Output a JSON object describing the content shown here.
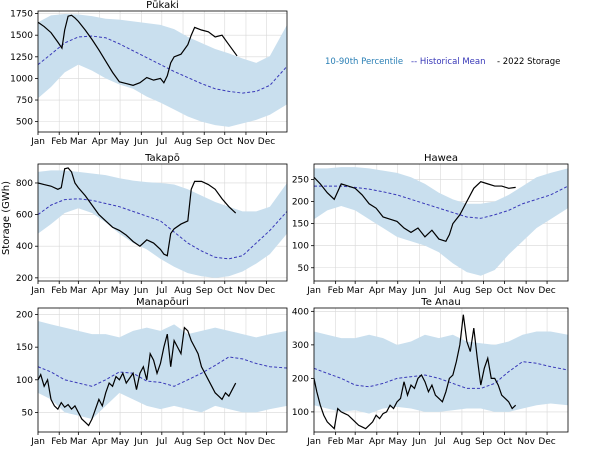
{
  "colors": {
    "band": "#c9dfee",
    "mean": "#3838b8",
    "storage": "#000000",
    "grid": "#d8d8d8",
    "legend_band": "#2a7fb5",
    "legend_mean": "#3838b8",
    "legend_storage": "#000000"
  },
  "legend": {
    "band_label": "10-90th Percentile",
    "mean_label": "-- Historical Mean",
    "storage_label": "- 2022 Storage",
    "placement": "top-right"
  },
  "months": [
    "Jan",
    "Feb",
    "Mar",
    "Apr",
    "May",
    "Jun",
    "Jul",
    "Aug",
    "Sep",
    "Oct",
    "Nov",
    "Dec"
  ],
  "ylabel": "Storage (GWh)",
  "chart_data": [
    {
      "type": "line",
      "title": "Pūkaki",
      "ylim": [
        380,
        1780
      ],
      "yticks": [
        500,
        750,
        1000,
        1250,
        1500,
        1750
      ],
      "grid": true,
      "band": {
        "x": [
          1,
          20,
          40,
          60,
          80,
          100,
          120,
          140,
          160,
          180,
          200,
          220,
          240,
          260,
          280,
          300,
          320,
          340,
          365
        ],
        "low": [
          770,
          900,
          1070,
          1160,
          1090,
          1000,
          930,
          880,
          790,
          720,
          640,
          560,
          500,
          460,
          440,
          480,
          520,
          580,
          700
        ],
        "high": [
          1650,
          1730,
          1745,
          1740,
          1720,
          1690,
          1680,
          1660,
          1640,
          1620,
          1570,
          1480,
          1410,
          1340,
          1290,
          1230,
          1180,
          1260,
          1620
        ]
      },
      "series": [
        {
          "role": "mean",
          "x": [
            1,
            20,
            40,
            60,
            80,
            100,
            120,
            140,
            160,
            180,
            200,
            220,
            240,
            260,
            280,
            300,
            320,
            340,
            365
          ],
          "values": [
            1160,
            1280,
            1410,
            1480,
            1490,
            1470,
            1400,
            1320,
            1240,
            1160,
            1080,
            1010,
            940,
            880,
            850,
            830,
            850,
            920,
            1140
          ]
        },
        {
          "role": "storage",
          "x": [
            1,
            10,
            20,
            30,
            36,
            40,
            45,
            50,
            55,
            60,
            70,
            80,
            90,
            100,
            110,
            120,
            130,
            140,
            150,
            160,
            170,
            180,
            185,
            190,
            195,
            200,
            210,
            220,
            225,
            230,
            240,
            250,
            260,
            270,
            280,
            292
          ],
          "values": [
            1650,
            1600,
            1530,
            1420,
            1350,
            1560,
            1720,
            1730,
            1700,
            1660,
            1560,
            1450,
            1330,
            1200,
            1070,
            960,
            940,
            920,
            950,
            1010,
            980,
            1000,
            950,
            1030,
            1180,
            1250,
            1280,
            1390,
            1500,
            1590,
            1560,
            1540,
            1480,
            1500,
            1390,
            1260
          ]
        }
      ]
    },
    {
      "type": "line",
      "title": "Takapō",
      "ylim": [
        180,
        920
      ],
      "yticks": [
        200,
        400,
        600,
        800
      ],
      "grid": true,
      "band": {
        "x": [
          1,
          20,
          40,
          60,
          80,
          100,
          120,
          140,
          160,
          180,
          200,
          220,
          240,
          260,
          280,
          300,
          320,
          340,
          365
        ],
        "low": [
          480,
          540,
          610,
          640,
          610,
          550,
          480,
          420,
          380,
          320,
          270,
          230,
          210,
          200,
          210,
          240,
          290,
          350,
          480
        ],
        "high": [
          870,
          880,
          880,
          870,
          860,
          850,
          830,
          815,
          805,
          800,
          790,
          760,
          720,
          680,
          650,
          620,
          620,
          650,
          800
        ]
      },
      "series": [
        {
          "role": "mean",
          "x": [
            1,
            20,
            40,
            60,
            80,
            100,
            120,
            140,
            160,
            180,
            200,
            220,
            240,
            260,
            280,
            300,
            320,
            340,
            365
          ],
          "values": [
            600,
            660,
            695,
            700,
            690,
            670,
            650,
            620,
            590,
            560,
            490,
            420,
            370,
            330,
            320,
            340,
            420,
            500,
            620
          ]
        },
        {
          "role": "storage",
          "x": [
            1,
            10,
            20,
            30,
            35,
            40,
            45,
            50,
            55,
            60,
            70,
            80,
            90,
            100,
            110,
            120,
            130,
            140,
            150,
            160,
            170,
            180,
            185,
            190,
            195,
            200,
            210,
            220,
            225,
            230,
            240,
            250,
            260,
            270,
            280,
            290
          ],
          "values": [
            800,
            790,
            780,
            760,
            770,
            890,
            895,
            870,
            800,
            770,
            720,
            660,
            600,
            560,
            520,
            500,
            470,
            430,
            400,
            440,
            420,
            380,
            350,
            340,
            480,
            510,
            540,
            560,
            760,
            810,
            810,
            790,
            760,
            700,
            650,
            610
          ]
        }
      ]
    },
    {
      "type": "line",
      "title": "Hawea",
      "ylim": [
        20,
        285
      ],
      "yticks": [
        50,
        100,
        150,
        200,
        250
      ],
      "grid": true,
      "band": {
        "x": [
          1,
          20,
          40,
          60,
          80,
          100,
          120,
          140,
          160,
          180,
          200,
          220,
          240,
          260,
          280,
          300,
          320,
          340,
          365
        ],
        "low": [
          160,
          180,
          190,
          180,
          160,
          140,
          120,
          110,
          100,
          85,
          60,
          40,
          32,
          45,
          80,
          110,
          140,
          160,
          185
        ],
        "high": [
          275,
          275,
          278,
          278,
          275,
          270,
          265,
          255,
          240,
          220,
          205,
          195,
          195,
          200,
          215,
          235,
          255,
          265,
          275
        ]
      },
      "series": [
        {
          "role": "mean",
          "x": [
            1,
            20,
            40,
            60,
            80,
            100,
            120,
            140,
            160,
            180,
            200,
            220,
            240,
            260,
            280,
            300,
            320,
            340,
            365
          ],
          "values": [
            235,
            235,
            235,
            232,
            228,
            222,
            215,
            205,
            195,
            185,
            175,
            165,
            162,
            170,
            180,
            195,
            205,
            215,
            235
          ]
        },
        {
          "role": "storage",
          "x": [
            1,
            10,
            20,
            30,
            40,
            50,
            60,
            70,
            80,
            90,
            100,
            110,
            120,
            130,
            140,
            150,
            160,
            170,
            180,
            190,
            195,
            200,
            210,
            220,
            230,
            240,
            250,
            260,
            270,
            280,
            290
          ],
          "values": [
            255,
            240,
            220,
            205,
            240,
            235,
            230,
            215,
            195,
            185,
            165,
            160,
            155,
            140,
            130,
            140,
            120,
            135,
            115,
            110,
            125,
            150,
            170,
            200,
            230,
            245,
            240,
            235,
            235,
            230,
            232
          ]
        }
      ]
    },
    {
      "type": "line",
      "title": "Manapōuri",
      "ylim": [
        20,
        210
      ],
      "yticks": [
        50,
        100,
        150,
        200
      ],
      "grid": true,
      "band": {
        "x": [
          1,
          20,
          40,
          60,
          80,
          100,
          120,
          140,
          160,
          180,
          200,
          220,
          240,
          260,
          280,
          300,
          320,
          340,
          365
        ],
        "low": [
          80,
          70,
          50,
          45,
          40,
          60,
          80,
          70,
          60,
          55,
          60,
          55,
          50,
          60,
          55,
          50,
          50,
          55,
          60
        ],
        "high": [
          190,
          185,
          180,
          175,
          170,
          170,
          165,
          175,
          180,
          175,
          185,
          170,
          175,
          180,
          175,
          170,
          165,
          170,
          175
        ]
      },
      "series": [
        {
          "role": "mean",
          "x": [
            1,
            20,
            40,
            60,
            80,
            100,
            120,
            140,
            160,
            180,
            200,
            220,
            240,
            260,
            280,
            300,
            320,
            340,
            365
          ],
          "values": [
            120,
            112,
            100,
            95,
            90,
            100,
            112,
            110,
            98,
            96,
            90,
            100,
            110,
            122,
            135,
            132,
            125,
            120,
            118
          ]
        },
        {
          "role": "storage",
          "x": [
            1,
            5,
            10,
            15,
            20,
            25,
            30,
            35,
            40,
            45,
            50,
            55,
            60,
            65,
            70,
            75,
            80,
            85,
            90,
            95,
            100,
            105,
            110,
            115,
            120,
            125,
            130,
            140,
            145,
            150,
            155,
            160,
            165,
            170,
            175,
            180,
            185,
            190,
            195,
            200,
            205,
            210,
            215,
            220,
            225,
            230,
            235,
            240,
            245,
            250,
            255,
            260,
            265,
            270,
            275,
            280,
            285,
            290
          ],
          "values": [
            100,
            108,
            90,
            100,
            70,
            60,
            55,
            65,
            58,
            62,
            55,
            60,
            50,
            40,
            35,
            30,
            40,
            55,
            70,
            60,
            80,
            95,
            90,
            105,
            100,
            110,
            95,
            110,
            85,
            110,
            120,
            100,
            140,
            130,
            110,
            125,
            150,
            170,
            120,
            160,
            150,
            140,
            180,
            175,
            160,
            150,
            140,
            120,
            110,
            100,
            90,
            80,
            75,
            70,
            80,
            75,
            85,
            95
          ]
        }
      ]
    },
    {
      "type": "line",
      "title": "Te Anau",
      "ylim": [
        40,
        410
      ],
      "yticks": [
        100,
        200,
        300,
        400
      ],
      "grid": true,
      "band": {
        "x": [
          1,
          20,
          40,
          60,
          80,
          100,
          120,
          140,
          160,
          180,
          200,
          220,
          240,
          260,
          280,
          300,
          320,
          340,
          365
        ],
        "low": [
          120,
          110,
          100,
          105,
          95,
          110,
          115,
          110,
          100,
          100,
          105,
          110,
          110,
          100,
          100,
          110,
          120,
          125,
          120
        ],
        "high": [
          340,
          330,
          320,
          320,
          330,
          320,
          300,
          310,
          330,
          320,
          330,
          310,
          305,
          300,
          310,
          330,
          340,
          340,
          330
        ]
      },
      "series": [
        {
          "role": "mean",
          "x": [
            1,
            20,
            40,
            60,
            80,
            100,
            120,
            140,
            160,
            180,
            200,
            220,
            240,
            260,
            280,
            300,
            320,
            340,
            365
          ],
          "values": [
            230,
            215,
            200,
            180,
            175,
            185,
            200,
            205,
            210,
            200,
            185,
            170,
            170,
            185,
            220,
            250,
            245,
            235,
            225
          ]
        },
        {
          "role": "storage",
          "x": [
            1,
            5,
            10,
            15,
            20,
            25,
            30,
            35,
            40,
            45,
            50,
            55,
            60,
            65,
            70,
            75,
            80,
            85,
            90,
            95,
            100,
            105,
            110,
            115,
            120,
            125,
            130,
            135,
            140,
            145,
            150,
            155,
            160,
            165,
            170,
            175,
            180,
            185,
            190,
            195,
            200,
            205,
            210,
            215,
            220,
            225,
            230,
            235,
            240,
            245,
            250,
            255,
            260,
            265,
            270,
            275,
            280,
            285,
            290
          ],
          "values": [
            200,
            160,
            120,
            90,
            70,
            60,
            50,
            110,
            100,
            95,
            90,
            80,
            70,
            60,
            55,
            50,
            60,
            70,
            90,
            80,
            95,
            100,
            120,
            110,
            130,
            140,
            190,
            150,
            180,
            170,
            200,
            210,
            190,
            160,
            180,
            150,
            140,
            130,
            160,
            200,
            210,
            250,
            300,
            390,
            310,
            280,
            350,
            260,
            180,
            230,
            260,
            200,
            200,
            180,
            150,
            140,
            130,
            110,
            120
          ]
        }
      ]
    }
  ]
}
